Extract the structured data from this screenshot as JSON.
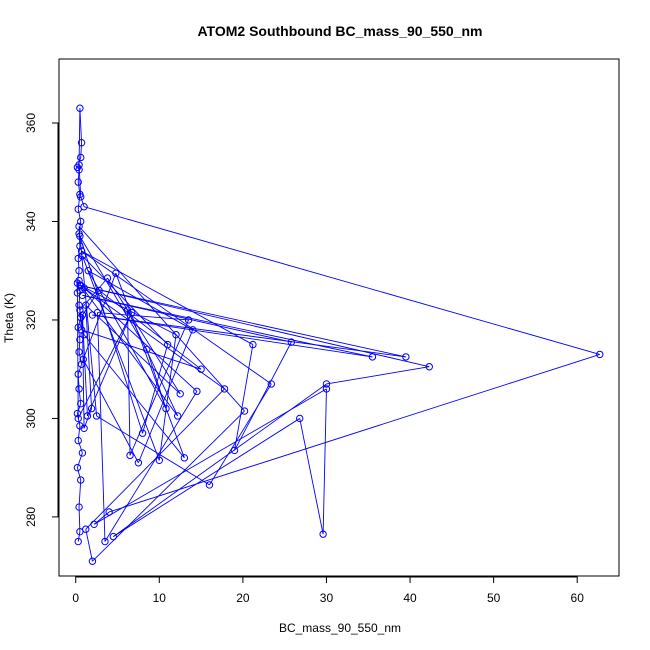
{
  "chart_data": {
    "type": "line",
    "title": "ATOM2 Southbound BC_mass_90_550_nm",
    "xlabel": "BC_mass_90_550_nm",
    "ylabel": "Theta (K)",
    "xlim": [
      -2,
      65
    ],
    "ylim": [
      268,
      373
    ],
    "xticks": [
      0,
      10,
      20,
      30,
      40,
      50,
      60
    ],
    "yticks": [
      280,
      300,
      320,
      340,
      360
    ],
    "grid": false,
    "series_color": "#0000ff",
    "series": [
      {
        "values": [
          [
            0.3,
            275.0
          ],
          [
            0.5,
            277.0
          ],
          [
            0.4,
            282.0
          ],
          [
            0.6,
            287.5
          ],
          [
            0.2,
            290.0
          ],
          [
            0.8,
            293.0
          ],
          [
            0.3,
            295.5
          ],
          [
            0.5,
            298.5
          ],
          [
            0.2,
            301.0
          ],
          [
            0.6,
            303.0
          ],
          [
            0.4,
            306.0
          ],
          [
            0.3,
            309.0
          ],
          [
            0.7,
            311.0
          ],
          [
            0.4,
            313.5
          ],
          [
            0.5,
            316.0
          ],
          [
            0.3,
            318.5
          ],
          [
            0.6,
            320.5
          ],
          [
            0.4,
            323.0
          ],
          [
            0.5,
            326.0
          ],
          [
            0.2,
            327.5
          ],
          [
            0.4,
            330.0
          ],
          [
            0.3,
            332.5
          ],
          [
            0.5,
            335.0
          ],
          [
            0.4,
            337.5
          ],
          [
            0.6,
            340.0
          ],
          [
            0.3,
            342.5
          ],
          [
            0.5,
            345.5
          ],
          [
            0.3,
            348.0
          ],
          [
            0.4,
            350.5
          ],
          [
            0.2,
            351.0
          ],
          [
            0.6,
            353.0
          ],
          [
            0.7,
            356.0
          ],
          [
            0.5,
            363.0
          ],
          [
            0.4,
            351.5
          ],
          [
            0.6,
            345.0
          ],
          [
            1.0,
            343.0
          ],
          [
            62.7,
            313.0
          ],
          [
            4.0,
            281.0
          ],
          [
            2.2,
            278.5
          ],
          [
            30.0,
            306.0
          ],
          [
            29.6,
            276.5
          ],
          [
            26.8,
            300.0
          ],
          [
            4.5,
            276.0
          ],
          [
            30.0,
            307.0
          ],
          [
            42.3,
            310.5
          ],
          [
            0.5,
            327.0
          ],
          [
            39.5,
            312.5
          ],
          [
            2.0,
            321.0
          ],
          [
            35.5,
            312.5
          ],
          [
            0.8,
            325.0
          ],
          [
            25.8,
            315.5
          ],
          [
            19.0,
            293.5
          ],
          [
            21.2,
            315.0
          ],
          [
            0.7,
            334.0
          ],
          [
            23.4,
            307.0
          ],
          [
            16.0,
            286.5
          ],
          [
            2.5,
            300.5
          ],
          [
            0.4,
            339.0
          ],
          [
            20.2,
            301.5
          ],
          [
            2.0,
            271.0
          ],
          [
            1.2,
            277.5
          ],
          [
            17.8,
            306.0
          ],
          [
            1.0,
            326.5
          ],
          [
            14.5,
            305.5
          ],
          [
            3.5,
            275.0
          ],
          [
            2.6,
            321.5
          ],
          [
            13.5,
            320.0
          ],
          [
            6.5,
            292.5
          ],
          [
            6.2,
            322.0
          ],
          [
            12.2,
            300.5
          ],
          [
            0.6,
            327.0
          ],
          [
            12.0,
            317.0
          ],
          [
            10.0,
            291.5
          ],
          [
            0.8,
            333.0
          ],
          [
            11.0,
            315.0
          ],
          [
            8.0,
            297.0
          ],
          [
            0.5,
            337.0
          ],
          [
            8.5,
            314.0
          ],
          [
            10.8,
            302.0
          ],
          [
            1.5,
            330.0
          ],
          [
            14.0,
            318.0
          ],
          [
            7.5,
            291.0
          ],
          [
            0.9,
            312.0
          ],
          [
            4.8,
            329.5
          ],
          [
            13.0,
            292.0
          ],
          [
            1.0,
            317.0
          ],
          [
            0.6,
            320.5
          ],
          [
            2.8,
            326.0
          ],
          [
            15.0,
            310.0
          ],
          [
            0.7,
            318.0
          ],
          [
            0.5,
            322.0
          ],
          [
            3.8,
            328.5
          ],
          [
            12.5,
            305.0
          ],
          [
            1.2,
            323.0
          ],
          [
            1.9,
            302.0
          ],
          [
            1.0,
            298.0
          ],
          [
            0.8,
            321.0
          ],
          [
            1.4,
            300.5
          ],
          [
            6.7,
            321.5
          ],
          [
            0.3,
            300.0
          ],
          [
            0.2,
            325.5
          ],
          [
            0.4,
            328.0
          ]
        ]
      }
    ]
  }
}
